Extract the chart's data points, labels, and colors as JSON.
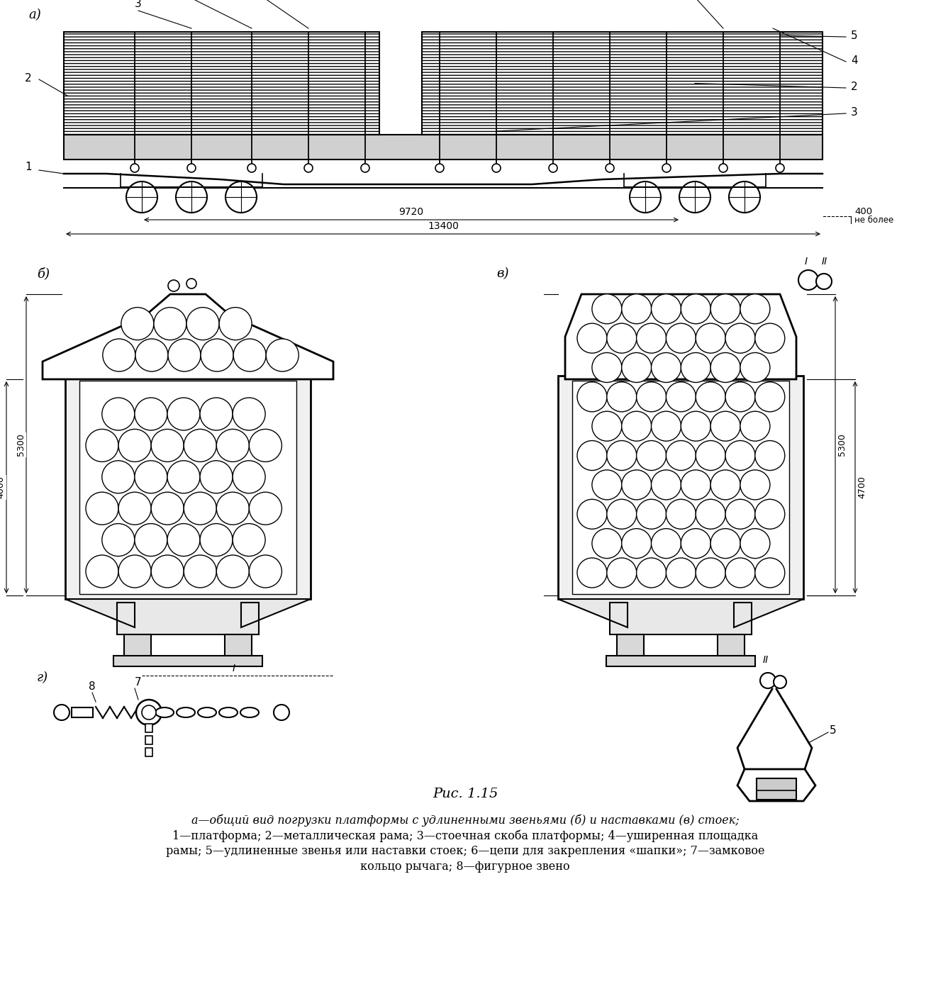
{
  "bg_color": "#ffffff",
  "title": "Рис. 1.15",
  "title_fontsize": 14,
  "caption_lines": [
    "а—общий вид погрузки платформы с удлиненными звеньями (б) и наставками (в) стоек;",
    "1—платформа; 2—металлическая рама; 3—стоечная скоба платформы; 4—уширенная площадка",
    "рамы; 5—удлиненные звенья или наставки стоек; 6—цепи для закрепления «шапки»; 7—замковое",
    "кольцо рычага; 8—фигурное звено"
  ],
  "caption_fontsize": 11.5
}
